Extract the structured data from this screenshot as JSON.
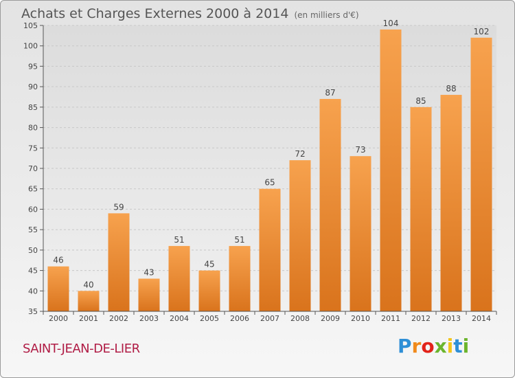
{
  "header": {
    "title": "Achats et Charges Externes 2000 à 2014",
    "unit": "(en milliers d'€)"
  },
  "footer": {
    "commune": "SAINT-JEAN-DE-LIER",
    "logo_text": "Proxiti",
    "logo_colors": [
      "#2e8fd6",
      "#f08a1c",
      "#e2231a",
      "#6cb52d",
      "#f2c51c",
      "#2e8fd6",
      "#6cb52d"
    ]
  },
  "chart_data": {
    "type": "bar",
    "categories": [
      "2000",
      "2001",
      "2002",
      "2003",
      "2004",
      "2005",
      "2006",
      "2007",
      "2008",
      "2009",
      "2010",
      "2011",
      "2012",
      "2013",
      "2014"
    ],
    "values": [
      46,
      40,
      59,
      43,
      51,
      45,
      51,
      65,
      72,
      87,
      73,
      104,
      85,
      88,
      102
    ],
    "ylim": [
      35,
      105
    ],
    "yticks": [
      35,
      40,
      45,
      50,
      55,
      60,
      65,
      70,
      75,
      80,
      85,
      90,
      95,
      100,
      105
    ],
    "grid": true,
    "bar_color_top": "#f7a24e",
    "bar_color_bottom": "#d9731c",
    "data_labels": true
  }
}
